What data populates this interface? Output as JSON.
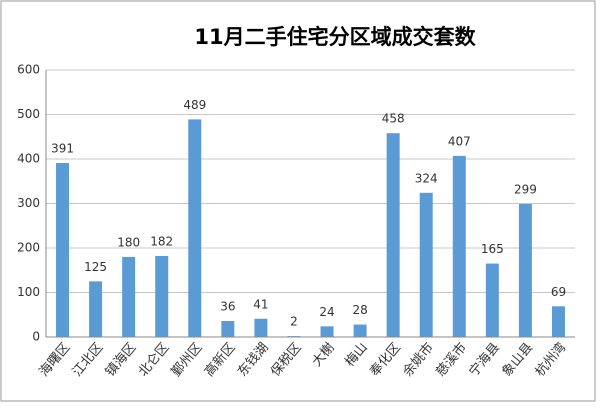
{
  "chart_data": {
    "type": "bar",
    "title": "11月二手住宅分区域成交套数",
    "categories": [
      "海曙区",
      "江北区",
      "镇海区",
      "北仑区",
      "鄞州区",
      "高新区",
      "东钱湖",
      "保税区",
      "大榭",
      "梅山",
      "奉化区",
      "余姚市",
      "慈溪市",
      "宁海县",
      "象山县",
      "杭州湾"
    ],
    "values": [
      391,
      125,
      180,
      182,
      489,
      36,
      41,
      2,
      24,
      28,
      458,
      324,
      407,
      165,
      299,
      69
    ],
    "color": "#5b9bd5",
    "ylim": [
      0,
      600
    ],
    "yticks": [
      0,
      100,
      200,
      300,
      400,
      500,
      600
    ],
    "grid": true
  }
}
